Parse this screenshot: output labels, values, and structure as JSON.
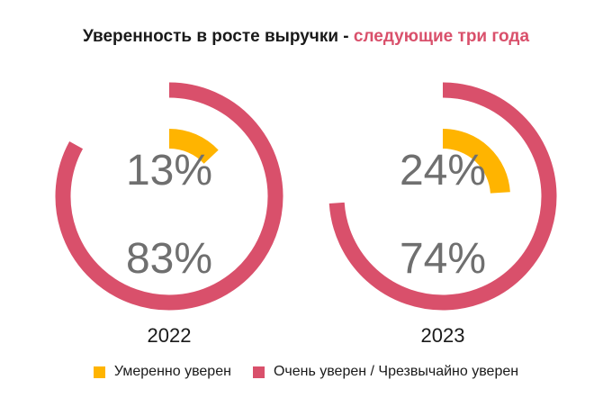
{
  "title": {
    "main": "Уверенность в росте выручки - ",
    "accent": "следующие три года"
  },
  "colors": {
    "moderate": "#ffb400",
    "very": "#d9506b",
    "text": "#6f6f6f"
  },
  "chart_data": {
    "type": "donut",
    "title": "Уверенность в росте выручки - следующие три года",
    "charts": [
      {
        "year": "2022",
        "moderate_label": "13%",
        "very_label": "83%",
        "moderate": 13,
        "very": 83
      },
      {
        "year": "2023",
        "moderate_label": "24%",
        "very_label": "74%",
        "moderate": 24,
        "very": 74
      }
    ],
    "legend": [
      {
        "name": "Умеренно уверен",
        "color": "#ffb400"
      },
      {
        "name": "Очень уверен / Чрезвычайно уверен",
        "color": "#d9506b"
      }
    ],
    "legend_position": "bottom"
  }
}
